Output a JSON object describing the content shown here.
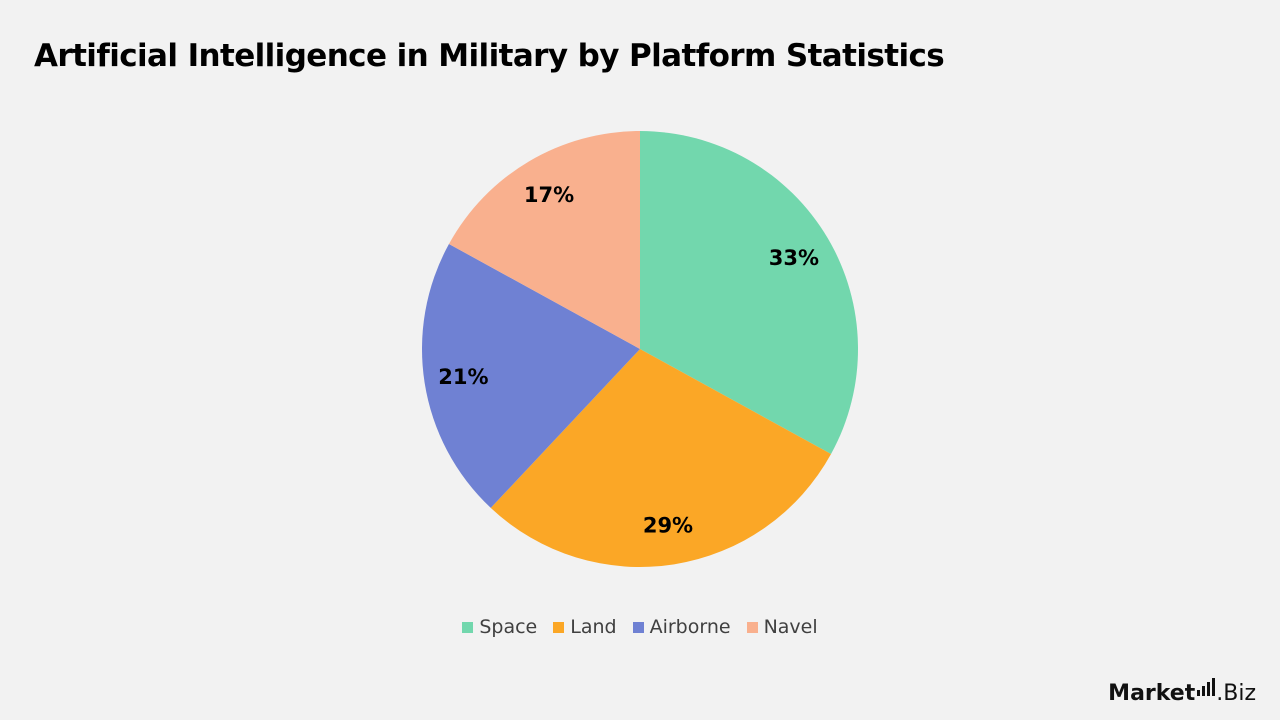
{
  "title": "Artificial Intelligence in Military by Platform Statistics",
  "brand": {
    "main": "Market",
    "suffix": ".Biz"
  },
  "chart_data": {
    "type": "pie",
    "title": "Artificial Intelligence in Military by Platform Statistics",
    "legend_position": "bottom",
    "slices": [
      {
        "name": "Space",
        "value": 33,
        "label": "33%",
        "color": "#72d7ad"
      },
      {
        "name": "Land",
        "value": 29,
        "label": "29%",
        "color": "#fba726"
      },
      {
        "name": "Airborne",
        "value": 21,
        "label": "21%",
        "color": "#6f81d3"
      },
      {
        "name": "Navel",
        "value": 17,
        "label": "17%",
        "color": "#f9b08e"
      }
    ]
  }
}
